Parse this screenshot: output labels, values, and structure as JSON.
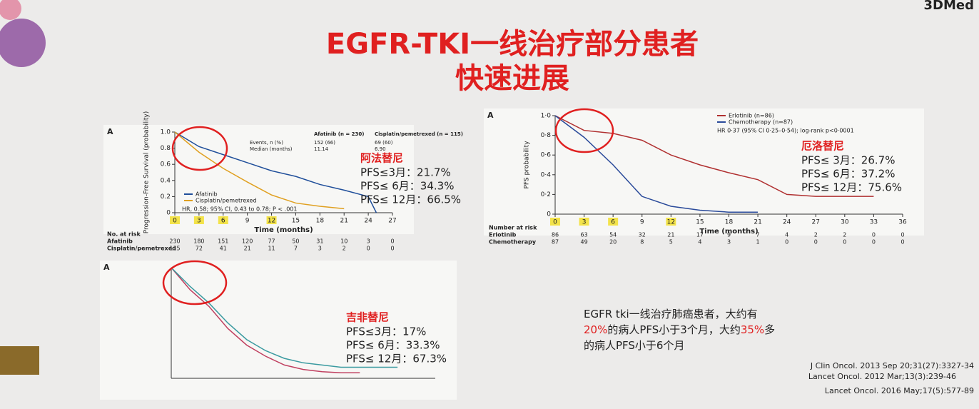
{
  "header": {
    "logo": "3DMed",
    "title_line1": "EGFR-TKI一线治疗部分患者",
    "title_line2": "快速进展"
  },
  "chart_data": [
    {
      "type": "line",
      "panel": "A",
      "ylabel": "Progression-Free Survival (probability)",
      "xlabel": "Time (months)",
      "x": [
        0,
        3,
        6,
        9,
        12,
        15,
        18,
        21,
        24,
        25
      ],
      "series": [
        {
          "name": "Afatinib",
          "color": "#1f4e9a",
          "values": [
            1.0,
            0.82,
            0.72,
            0.62,
            0.52,
            0.45,
            0.35,
            0.28,
            0.2,
            0
          ]
        },
        {
          "name": "Cisplatin/pemetrexed",
          "color": "#e0a020",
          "values": [
            1.0,
            0.75,
            0.55,
            0.38,
            0.22,
            0.12,
            0.08,
            0.05,
            null,
            null
          ]
        }
      ],
      "xlim": [
        0,
        27
      ],
      "ylim": [
        0,
        1
      ],
      "xticks": [
        0,
        3,
        6,
        9,
        12,
        15,
        18,
        21,
        24,
        27
      ],
      "yticks": [
        0,
        0.2,
        0.4,
        0.6,
        0.8,
        {
          "value": 1,
          "label": "1.0"
        }
      ],
      "legend": "lower-left",
      "stats": "HR, 0.58; 95% CI, 0.43 to 0.78; P < .001",
      "table": {
        "headers": [
          "Afatinib (n = 230)",
          "Cisplatin/pemetrexed (n = 115)"
        ],
        "rows": [
          [
            "Events, n (%)",
            "152 (66)",
            "69 (60)"
          ],
          [
            "Median (months)",
            "11.14",
            "6.90"
          ]
        ]
      },
      "at_risk": {
        "title": "No. at risk",
        "rows": [
          {
            "name": "Afatinib",
            "values": [
              230,
              180,
              151,
              120,
              77,
              50,
              31,
              10,
              3,
              0
            ]
          },
          {
            "name": "Cisplatin/pemetrexed",
            "values": [
              115,
              72,
              41,
              21,
              11,
              7,
              3,
              2,
              0,
              0
            ]
          }
        ]
      },
      "annotation": {
        "title": "阿法替尼",
        "lines": [
          "PFS≤3月：21.7%",
          "PFS≤ 6月：34.3%",
          "PFS≤ 12月：66.5%"
        ]
      }
    },
    {
      "type": "line",
      "panel": "A",
      "ylabel": "PFS probability",
      "xlabel": "Time (months)",
      "x": [
        0,
        3,
        6,
        9,
        12,
        15,
        18,
        21,
        24,
        27,
        30,
        33
      ],
      "series": [
        {
          "name": "Erlotinib (n=86)",
          "color": "#b03030",
          "values": [
            1.0,
            0.85,
            0.82,
            0.75,
            0.6,
            0.5,
            0.42,
            0.35,
            0.2,
            0.18,
            0.18,
            0.18
          ]
        },
        {
          "name": "Chemotherapy (n=87)",
          "color": "#2a4a9a",
          "values": [
            1.0,
            0.78,
            0.5,
            0.18,
            0.08,
            0.04,
            0.02,
            0.02,
            null,
            null,
            null,
            null
          ]
        }
      ],
      "xlim": [
        0,
        36
      ],
      "ylim": [
        0,
        1
      ],
      "xticks": [
        0,
        3,
        6,
        9,
        12,
        15,
        18,
        21,
        24,
        27,
        30,
        33,
        36
      ],
      "yticks": [
        0,
        {
          "value": 0.2,
          "label": "0·2"
        },
        {
          "value": 0.4,
          "label": "0·4"
        },
        {
          "value": 0.6,
          "label": "0·6"
        },
        {
          "value": 0.8,
          "label": "0·8"
        },
        {
          "value": 1,
          "label": "1·0"
        }
      ],
      "legend": "upper-right",
      "stats": "HR 0·37 (95% CI 0·25–0·54); log-rank p<0·0001",
      "at_risk": {
        "title": "Number at risk",
        "rows": [
          {
            "name": "Erlotinib",
            "values": [
              86,
              63,
              54,
              32,
              21,
              17,
              9,
              7,
              4,
              2,
              2,
              0,
              0
            ]
          },
          {
            "name": "Chemotherapy",
            "values": [
              87,
              49,
              20,
              8,
              5,
              4,
              3,
              1,
              0,
              0,
              0,
              0,
              0
            ]
          }
        ]
      },
      "annotation": {
        "title": "厄洛替尼",
        "lines": [
          "PFS≤ 3月：26.7%",
          "PFS≤ 6月：37.2%",
          "PFS≤ 12月：75.6%"
        ]
      }
    },
    {
      "type": "line",
      "panel": "A",
      "x": [
        0,
        3,
        6,
        9,
        12,
        15,
        18,
        21,
        24,
        27,
        30,
        33,
        36
      ],
      "series": [
        {
          "color": "#c04060",
          "values": [
            1.0,
            0.8,
            0.65,
            0.45,
            0.3,
            0.2,
            0.12,
            0.08,
            0.06,
            0.05,
            0.05,
            null,
            null
          ]
        },
        {
          "color": "#3a9aa0",
          "values": [
            1.0,
            0.83,
            0.68,
            0.5,
            0.35,
            0.25,
            0.18,
            0.14,
            0.12,
            0.1,
            0.1,
            0.1,
            0.1
          ]
        }
      ],
      "xlim": [
        0,
        42
      ],
      "ylim": [
        0,
        1
      ],
      "annotation": {
        "title": "吉非替尼",
        "lines": [
          "PFS≤3月：17%",
          "PFS≤ 6月：33.3%",
          "PFS≤ 12月：67.3%"
        ]
      }
    }
  ],
  "summary": {
    "part1": "EGFR tki一线治疗肺癌患者，大约有",
    "pct1": "20%",
    "part2": "的病人PFS小于3个月，大约",
    "pct2": "35%",
    "part3": "多",
    "part4": "的病人PFS小于6个月"
  },
  "references": [
    "J Clin Oncol. 2013 Sep 20;31(27):3327-34",
    "Lancet Oncol. 2012 Mar;13(3):239-46",
    "Lancet Oncol. 2016 May;17(5):577-89"
  ]
}
